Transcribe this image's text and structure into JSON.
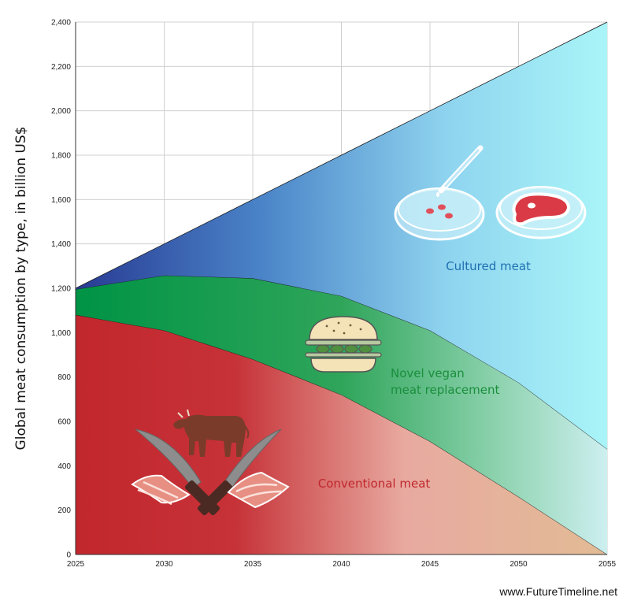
{
  "chart_data": {
    "type": "area",
    "stacked": true,
    "title": "",
    "xlabel": "",
    "ylabel": "Global meat consumption by type, in billion US$",
    "x": [
      2025,
      2030,
      2035,
      2040,
      2045,
      2050,
      2055
    ],
    "x_ticks": [
      "2025",
      "2030",
      "2035",
      "2040",
      "2045",
      "2050",
      "2055"
    ],
    "y_ticks": [
      "0",
      "200",
      "400",
      "600",
      "800",
      "1,000",
      "1,200",
      "1,400",
      "1,600",
      "1,800",
      "2,000",
      "2,200",
      "2,400"
    ],
    "ylim": [
      0,
      2400
    ],
    "xlim": [
      2025,
      2055
    ],
    "grid": true,
    "series": [
      {
        "name": "Conventional meat",
        "values": [
          1080,
          1010,
          880,
          720,
          510,
          260,
          0
        ],
        "color": "#c1272d"
      },
      {
        "name": "Novel vegan meat replacement",
        "values": [
          115,
          248,
          365,
          445,
          500,
          515,
          475
        ],
        "color": "#11913f"
      },
      {
        "name": "Cultured meat",
        "values": [
          5,
          142,
          355,
          635,
          990,
          1425,
          1925
        ],
        "color": "#2d4fa0"
      }
    ],
    "labels": {
      "conventional": "Conventional meat",
      "vegan_line1": "Novel vegan",
      "vegan_line2": "meat replacement",
      "cultured": "Cultured meat"
    },
    "label_colors": {
      "conventional": "#c1272d",
      "vegan": "#1a8f3c",
      "cultured": "#1f6fb0"
    },
    "icons": [
      "cow-icon",
      "knives-icon",
      "bacon-icon",
      "burger-icon",
      "petri-dish-icon",
      "pipette-icon",
      "steak-icon"
    ]
  },
  "credit": "www.FutureTimeline.net"
}
